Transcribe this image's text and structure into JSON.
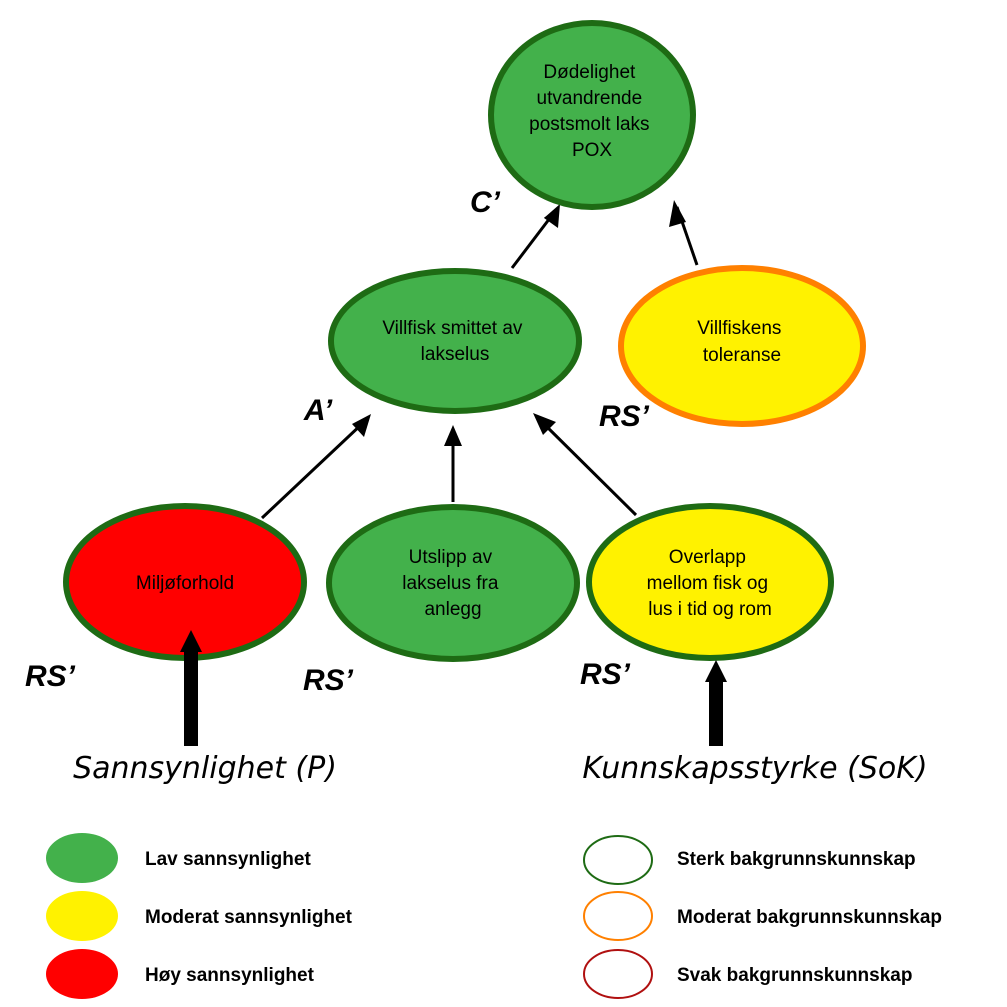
{
  "colors": {
    "green_fill": "#43b14b",
    "yellow_fill": "#fff200",
    "red_fill": "#ff0000",
    "strong_border": "#1e6b14",
    "moderate_border": "#ff8000",
    "weak_border": "#b01010"
  },
  "nodes": {
    "top": {
      "lines": [
        "Dødelighet",
        "utvandrende",
        "postsmolt laks",
        "POX"
      ],
      "probability": "Lav",
      "knowledge": "Sterk"
    },
    "mid": {
      "lines": [
        "Villfisk smittet av",
        "lakselus"
      ],
      "probability": "Lav",
      "knowledge": "Sterk"
    },
    "tolerance": {
      "lines": [
        "Villfiskens",
        "toleranse"
      ],
      "probability": "Moderat",
      "knowledge": "Moderat"
    },
    "environment": {
      "lines": [
        "Miljøforhold"
      ],
      "probability": "Høy",
      "knowledge": "Sterk"
    },
    "discharge": {
      "lines": [
        "Utslipp av",
        "lakselus fra",
        "anlegg"
      ],
      "probability": "Lav",
      "knowledge": "Sterk"
    },
    "overlap": {
      "lines": [
        "Overlapp",
        "mellom fisk og",
        "lus i tid og rom"
      ],
      "probability": "Moderat",
      "knowledge": "Sterk"
    }
  },
  "labels": {
    "c": "C’",
    "a": "A’",
    "rs_tolerance": "RS’",
    "rs_environment": "RS’",
    "rs_discharge": "RS’",
    "rs_overlap": "RS’",
    "probability_axis": "Sannsynlighet (P)",
    "knowledge_axis": "Kunnskapsstyrke (SoK)"
  },
  "legend": {
    "probability": [
      "Lav sannsynlighet",
      "Moderat sannsynlighet",
      "Høy sannsynlighet"
    ],
    "knowledge": [
      "Sterk bakgrunnskunnskap",
      "Moderat bakgrunnskunnskap",
      "Svak bakgrunnskunnskap"
    ]
  }
}
